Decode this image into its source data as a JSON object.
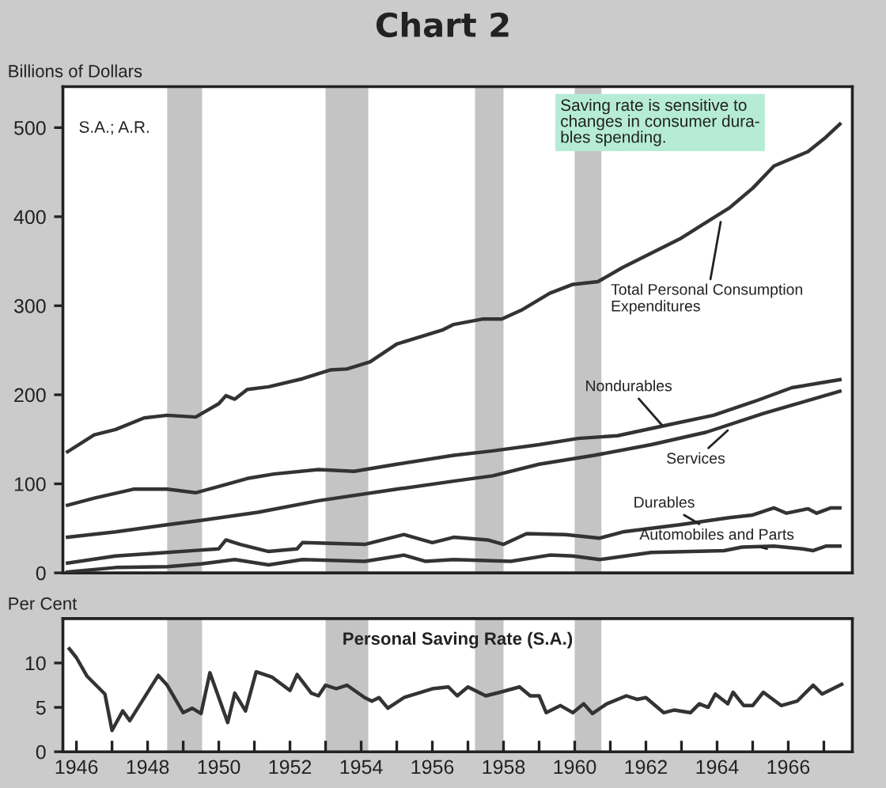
{
  "chart_data": [
    {
      "type": "line",
      "title": "Chart 2",
      "ylabel": "Billions of Dollars",
      "tick_labels": "y",
      "xlim": [
        1945.62,
        1967.8
      ],
      "ylim": [
        0,
        546
      ],
      "yticks": [
        0,
        100,
        200,
        300,
        400,
        500
      ],
      "grid": false,
      "legend": false,
      "series": [
        {
          "color": "#333333",
          "x": [
            1945.75,
            1946.5,
            1947.1,
            1947.9,
            1948.55,
            1949.35,
            1950.0,
            1950.2,
            1950.45,
            1950.8,
            1951.4,
            1952.35,
            1953.15,
            1953.6,
            1954.25,
            1955.0,
            1956.3,
            1956.6,
            1957.4,
            1957.95,
            1958.5,
            1959.3,
            1959.95,
            1960.65,
            1961.35,
            1962.95,
            1963.55,
            1964.35,
            1965.0,
            1965.6,
            1966.55,
            1967.05,
            1967.45
          ],
          "values": [
            136,
            155,
            161,
            174,
            177,
            175,
            190,
            199,
            195,
            206,
            209,
            218,
            228,
            229,
            237,
            257,
            273,
            279,
            285,
            285,
            295,
            314,
            324,
            327,
            343,
            375,
            390,
            410,
            432,
            457,
            473,
            489,
            504
          ]
        },
        {
          "color": "#333333",
          "x": [
            1945.75,
            1946.5,
            1947.6,
            1948.55,
            1949.35,
            1950.0,
            1950.8,
            1951.55,
            1952.8,
            1953.8,
            1955.0,
            1956.6,
            1957.7,
            1959.0,
            1960.1,
            1961.2,
            1962.6,
            1963.9,
            1965.15,
            1966.1,
            1967.45
          ],
          "values": [
            76,
            84,
            94,
            94,
            90,
            97,
            106,
            111,
            116,
            114,
            122,
            132,
            137,
            144,
            151,
            154,
            166,
            177,
            194,
            208,
            217
          ]
        },
        {
          "color": "#333333",
          "x": [
            1945.75,
            1947.1,
            1948.55,
            1949.5,
            1951.1,
            1952.8,
            1955.0,
            1956.6,
            1957.7,
            1959.0,
            1960.55,
            1962.15,
            1963.7,
            1965.3,
            1967.45
          ],
          "values": [
            40,
            46,
            54,
            59,
            68,
            81,
            94,
            103,
            109,
            122,
            132,
            144,
            158,
            179,
            204
          ]
        },
        {
          "color": "#333333",
          "x": [
            1945.75,
            1947.1,
            1948.55,
            1950.0,
            1950.2,
            1950.6,
            1951.4,
            1952.2,
            1952.35,
            1954.1,
            1955.2,
            1956.0,
            1956.6,
            1957.55,
            1958.0,
            1958.65,
            1959.75,
            1960.7,
            1961.35,
            1962.95,
            1964.35,
            1965.0,
            1965.6,
            1965.95,
            1966.55,
            1966.8,
            1967.2,
            1967.45
          ],
          "values": [
            11,
            19,
            23,
            27,
            37,
            32,
            24,
            27,
            34,
            32,
            43,
            34,
            40,
            37,
            32,
            44,
            43,
            39,
            46,
            54,
            62,
            65,
            73,
            67,
            72,
            67,
            73,
            73
          ]
        },
        {
          "color": "#333333",
          "x": [
            1945.75,
            1947.1,
            1948.55,
            1949.5,
            1950.45,
            1951.4,
            1952.35,
            1954.1,
            1955.2,
            1955.8,
            1956.6,
            1958.2,
            1959.3,
            1959.95,
            1960.7,
            1962.15,
            1964.2,
            1964.7,
            1965.6,
            1966.4,
            1966.7,
            1967.05,
            1967.45
          ],
          "values": [
            1,
            6,
            7,
            10,
            15,
            9,
            15,
            13,
            20,
            13,
            15,
            13,
            20,
            19,
            15,
            23,
            25,
            29,
            30,
            27,
            25,
            30,
            30
          ]
        }
      ],
      "bands": [
        {
          "axis": "x",
          "from": 1948.55,
          "to": 1949.53,
          "color": "#c4c4c4"
        },
        {
          "axis": "x",
          "from": 1953.0,
          "to": 1954.2,
          "color": "#c4c4c4"
        },
        {
          "axis": "x",
          "from": 1957.2,
          "to": 1958.0,
          "color": "#c4c4c4"
        },
        {
          "axis": "x",
          "from": 1960.0,
          "to": 1960.75,
          "color": "#c4c4c4"
        }
      ],
      "annotations": [
        "S.A.; A.R.",
        "Saving rate is sensitive to\nchanges in consumer dura-\nbles spending.",
        {
          "text": "Total Personal Consumption\nExpenditures",
          "x": 1964.1,
          "y": 394
        },
        {
          "text": "Nondurables",
          "x": 1962.45,
          "y": 166
        },
        {
          "text": "Services",
          "x": 1964.3,
          "y": 160
        },
        {
          "text": "Durables",
          "x": 1963.5,
          "y": 55
        },
        {
          "text": "Automobiles and Parts",
          "x": 1965.4,
          "y": 27
        }
      ]
    },
    {
      "type": "line",
      "title": "Personal Saving Rate (S.A.)",
      "ylabel": "Per Cent",
      "xlim": [
        1945.62,
        1967.8
      ],
      "xticks": [
        1946,
        {
          "value": 1947,
          "label": null
        },
        1948,
        {
          "value": 1949,
          "label": null
        },
        1950,
        {
          "value": 1951,
          "label": null
        },
        1952,
        {
          "value": 1953,
          "label": null
        },
        1954,
        {
          "value": 1955,
          "label": null
        },
        1956,
        {
          "value": 1957,
          "label": null
        },
        1958,
        {
          "value": 1959,
          "label": null
        },
        1960,
        {
          "value": 1961,
          "label": null
        },
        1962,
        {
          "value": 1963,
          "label": null
        },
        1964,
        {
          "value": 1965,
          "label": null
        },
        1966,
        {
          "value": 1967,
          "label": null
        }
      ],
      "ylim": [
        0,
        15
      ],
      "yticks": [
        0,
        5,
        10
      ],
      "grid": false,
      "legend": false,
      "series": [
        {
          "color": "#333333",
          "x": [
            1945.8,
            1946.0,
            1946.3,
            1946.8,
            1947.0,
            1947.3,
            1947.5,
            1948.3,
            1948.55,
            1949.0,
            1949.25,
            1949.5,
            1949.75,
            1950.25,
            1950.45,
            1950.75,
            1951.05,
            1951.5,
            1952.0,
            1952.2,
            1952.6,
            1952.8,
            1953.0,
            1953.3,
            1953.6,
            1954.1,
            1954.3,
            1954.5,
            1954.75,
            1955.2,
            1956.0,
            1956.45,
            1956.7,
            1957.0,
            1957.5,
            1957.9,
            1958.45,
            1958.75,
            1959.0,
            1959.2,
            1959.6,
            1959.95,
            1960.25,
            1960.5,
            1960.9,
            1961.45,
            1961.75,
            1962.0,
            1962.5,
            1962.8,
            1963.25,
            1963.5,
            1963.75,
            1963.95,
            1964.3,
            1964.45,
            1964.75,
            1965.0,
            1965.3,
            1965.8,
            1966.25,
            1966.7,
            1966.95,
            1967.5
          ],
          "values": [
            11.6,
            10.6,
            8.5,
            6.5,
            2.4,
            4.6,
            3.5,
            8.6,
            7.5,
            4.4,
            4.9,
            4.3,
            8.9,
            3.3,
            6.6,
            4.6,
            9.0,
            8.4,
            6.9,
            8.7,
            6.6,
            6.3,
            7.5,
            7.1,
            7.5,
            6.1,
            5.7,
            6.1,
            4.9,
            6.1,
            7.1,
            7.3,
            6.3,
            7.3,
            6.3,
            6.7,
            7.3,
            6.3,
            6.3,
            4.4,
            5.2,
            4.4,
            5.4,
            4.3,
            5.4,
            6.3,
            5.9,
            6.1,
            4.4,
            4.7,
            4.4,
            5.4,
            5.0,
            6.5,
            5.4,
            6.7,
            5.2,
            5.2,
            6.7,
            5.2,
            5.7,
            7.5,
            6.5,
            7.6
          ]
        }
      ],
      "bands": [
        {
          "axis": "x",
          "from": 1948.55,
          "to": 1949.53,
          "color": "#c4c4c4"
        },
        {
          "axis": "x",
          "from": 1953.0,
          "to": 1954.2,
          "color": "#c4c4c4"
        },
        {
          "axis": "x",
          "from": 1957.2,
          "to": 1958.0,
          "color": "#c4c4c4"
        },
        {
          "axis": "x",
          "from": 1960.0,
          "to": 1960.75,
          "color": "#c4c4c4"
        }
      ]
    }
  ]
}
